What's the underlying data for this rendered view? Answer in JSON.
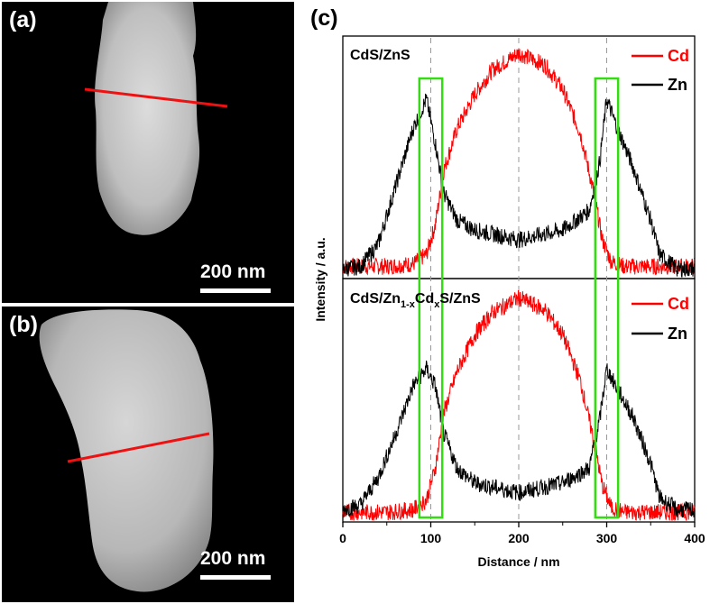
{
  "panels": {
    "a": {
      "label": "(a)",
      "scale": "200 nm"
    },
    "b": {
      "label": "(b)",
      "scale": "200 nm"
    },
    "c": {
      "label": "(c)"
    }
  },
  "colors": {
    "cd": "#ff0000",
    "zn": "#000000",
    "box": "#33dd11",
    "line": "#ee1111"
  },
  "chart_data": {
    "type": "line",
    "xlabel": "Distance / nm",
    "ylabel": "Intensity / a.u.",
    "xlim": [
      0,
      400
    ],
    "xticks": [
      "0",
      "100",
      "200",
      "300",
      "400"
    ],
    "reference_lines_x": [
      100,
      200,
      300
    ],
    "highlight_x_ranges": [
      [
        87,
        113
      ],
      [
        287,
        313
      ]
    ],
    "legend": {
      "cd": "Cd",
      "zn": "Zn"
    },
    "subplots": [
      {
        "title": "CdS/ZnS",
        "series": [
          {
            "name": "Cd",
            "x": [
              0,
              50,
              80,
              95,
              105,
              115,
              130,
              150,
              170,
              200,
              230,
              250,
              270,
              285,
              295,
              305,
              320,
              400
            ],
            "y": [
              0.05,
              0.05,
              0.06,
              0.1,
              0.22,
              0.45,
              0.62,
              0.76,
              0.86,
              0.93,
              0.88,
              0.78,
              0.6,
              0.36,
              0.16,
              0.07,
              0.05,
              0.05
            ]
          },
          {
            "name": "Zn",
            "x": [
              0,
              20,
              40,
              60,
              80,
              95,
              105,
              115,
              130,
              150,
              200,
              250,
              280,
              292,
              300,
              310,
              330,
              350,
              360,
              380,
              400
            ],
            "y": [
              0.04,
              0.05,
              0.14,
              0.38,
              0.62,
              0.74,
              0.56,
              0.35,
              0.24,
              0.2,
              0.16,
              0.2,
              0.28,
              0.48,
              0.74,
              0.64,
              0.46,
              0.24,
              0.1,
              0.04,
              0.04
            ]
          }
        ]
      },
      {
        "title_parts": [
          "CdS/Zn",
          "1-x",
          "Cd",
          "x",
          "S/ZnS"
        ],
        "series": [
          {
            "name": "Cd",
            "x": [
              0,
              50,
              80,
              95,
              105,
              115,
              130,
              150,
              170,
              200,
              230,
              250,
              270,
              285,
              295,
              305,
              320,
              400
            ],
            "y": [
              0.04,
              0.04,
              0.05,
              0.09,
              0.22,
              0.45,
              0.62,
              0.77,
              0.86,
              0.92,
              0.87,
              0.77,
              0.58,
              0.34,
              0.15,
              0.06,
              0.04,
              0.04
            ]
          },
          {
            "name": "Zn",
            "x": [
              0,
              20,
              40,
              60,
              80,
              95,
              105,
              115,
              130,
              150,
              200,
              250,
              280,
              292,
              300,
              310,
              330,
              350,
              360,
              380,
              400
            ],
            "y": [
              0.05,
              0.07,
              0.18,
              0.36,
              0.56,
              0.63,
              0.56,
              0.36,
              0.22,
              0.16,
              0.12,
              0.16,
              0.22,
              0.42,
              0.63,
              0.56,
              0.43,
              0.24,
              0.1,
              0.05,
              0.05
            ]
          }
        ]
      }
    ]
  }
}
